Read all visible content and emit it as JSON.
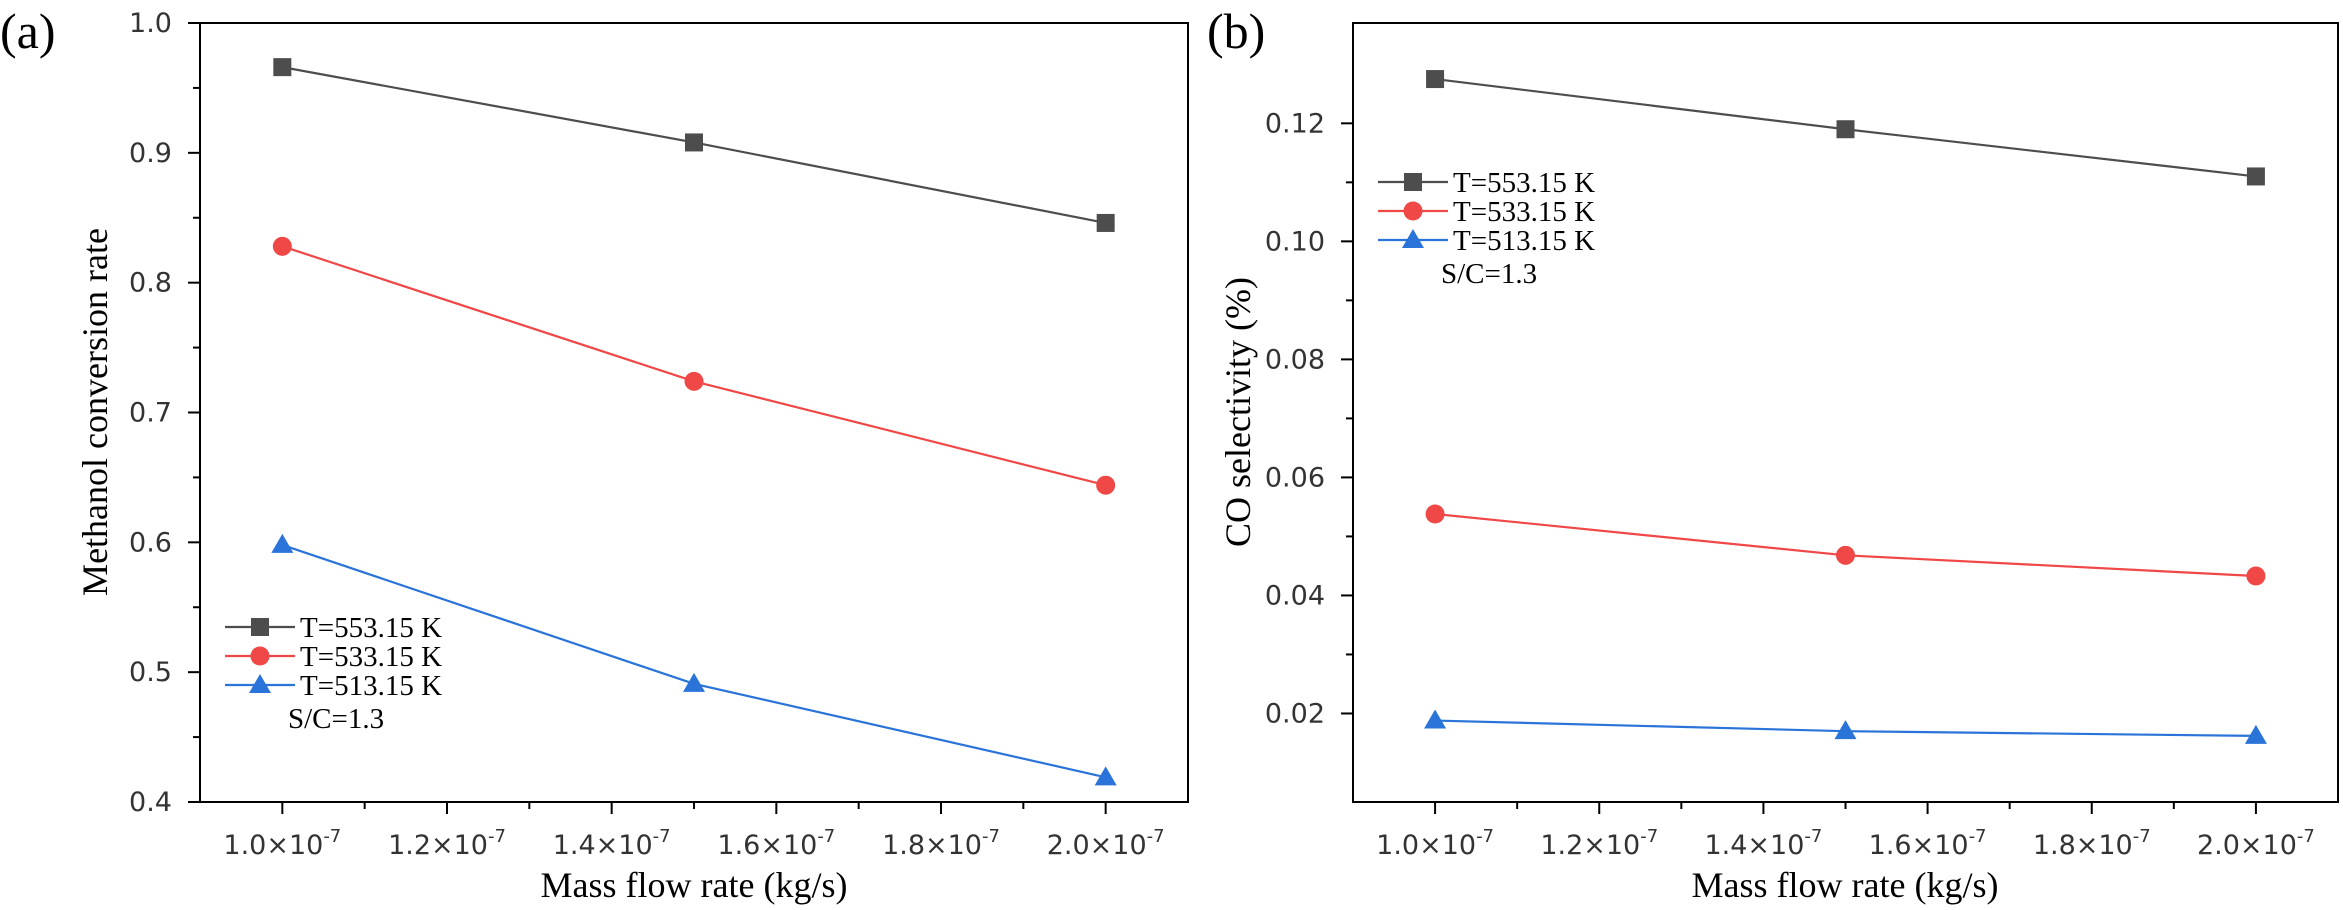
{
  "panels": [
    {
      "label": "(a)",
      "xlabel": "Mass flow rate (kg/s)",
      "ylabel": "Methanol conversion rate"
    },
    {
      "label": "(b)",
      "xlabel": "Mass flow rate (kg/s)",
      "ylabel": "CO selectivity (%)"
    }
  ],
  "chart_data": [
    {
      "type": "line",
      "title": "",
      "xlabel": "Mass flow rate (kg/s)",
      "ylabel": "Methanol conversion rate",
      "xlim": [
        9e-08,
        2.1e-07
      ],
      "ylim": [
        0.4,
        1.0
      ],
      "x_ticks": [
        1e-07,
        1.2e-07,
        1.4e-07,
        1.6e-07,
        1.8e-07,
        2e-07
      ],
      "x_tick_labels": [
        {
          "mant": "1.0×10",
          "exp": "-7"
        },
        {
          "mant": "1.2×10",
          "exp": "-7"
        },
        {
          "mant": "1.4×10",
          "exp": "-7"
        },
        {
          "mant": "1.6×10",
          "exp": "-7"
        },
        {
          "mant": "1.8×10",
          "exp": "-7"
        },
        {
          "mant": "2.0×10",
          "exp": "-7"
        }
      ],
      "y_ticks": [
        0.4,
        0.5,
        0.6,
        0.7,
        0.8,
        0.9,
        1.0
      ],
      "y_tick_labels": [
        "0.4",
        "0.5",
        "0.6",
        "0.7",
        "0.8",
        "0.9",
        "1.0"
      ],
      "x": [
        1e-07,
        1.5e-07,
        2e-07
      ],
      "series": [
        {
          "name": "T=553.15 K",
          "values": [
            0.966,
            0.908,
            0.846
          ],
          "color": "#4d4d4d",
          "marker": "square"
        },
        {
          "name": "T=533.15 K",
          "values": [
            0.828,
            0.724,
            0.644
          ],
          "color": "#f04747",
          "marker": "circle"
        },
        {
          "name": "T=513.15 K",
          "values": [
            0.598,
            0.491,
            0.419
          ],
          "color": "#2a74d9",
          "marker": "triangle"
        }
      ],
      "legend_note": "S/C=1.3",
      "legend_position": "bottom-left",
      "grid": false
    },
    {
      "type": "line",
      "title": "",
      "xlabel": "Mass flow rate (kg/s)",
      "ylabel": "CO selectivity (%)",
      "xlim": [
        9e-08,
        2.1e-07
      ],
      "ylim": [
        0.005,
        0.137
      ],
      "x_ticks": [
        1e-07,
        1.2e-07,
        1.4e-07,
        1.6e-07,
        1.8e-07,
        2e-07
      ],
      "x_tick_labels": [
        {
          "mant": "1.0×10",
          "exp": "-7"
        },
        {
          "mant": "1.2×10",
          "exp": "-7"
        },
        {
          "mant": "1.4×10",
          "exp": "-7"
        },
        {
          "mant": "1.6×10",
          "exp": "-7"
        },
        {
          "mant": "1.8×10",
          "exp": "-7"
        },
        {
          "mant": "2.0×10",
          "exp": "-7"
        }
      ],
      "y_ticks": [
        0.02,
        0.04,
        0.06,
        0.08,
        0.1,
        0.12
      ],
      "y_tick_labels": [
        "0.02",
        "0.04",
        "0.06",
        "0.08",
        "0.10",
        "0.12"
      ],
      "x": [
        1e-07,
        1.5e-07,
        2e-07
      ],
      "series": [
        {
          "name": "T=553.15 K",
          "values": [
            0.1275,
            0.119,
            0.111
          ],
          "color": "#4d4d4d",
          "marker": "square"
        },
        {
          "name": "T=533.15 K",
          "values": [
            0.0538,
            0.0468,
            0.0433
          ],
          "color": "#f04747",
          "marker": "circle"
        },
        {
          "name": "T=513.15 K",
          "values": [
            0.0188,
            0.017,
            0.0162
          ],
          "color": "#2a74d9",
          "marker": "triangle"
        }
      ],
      "legend_note": "S/C=1.3",
      "legend_position": "top-left",
      "grid": false
    }
  ]
}
